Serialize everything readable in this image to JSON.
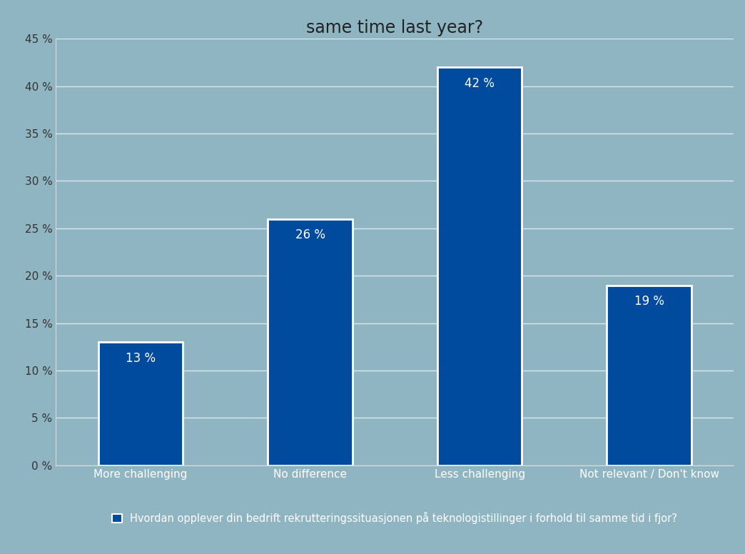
{
  "chart_data": {
    "type": "bar",
    "title": "same time last year?",
    "categories": [
      "More challenging",
      "No difference",
      "Less challenging",
      "Not relevant / Don't know"
    ],
    "series": [
      {
        "name": "Hvordan opplever din bedrift rekrutteringssituasjonen på teknologistillinger i forhold til samme tid i fjor?",
        "color": "#004b9e",
        "values": [
          13,
          26,
          42,
          19
        ],
        "value_labels": [
          "13 %",
          "26 %",
          "42 %",
          "19 %"
        ]
      }
    ],
    "ylim": [
      0,
      45
    ],
    "yticks": [
      {
        "value": 0,
        "label": "0 %"
      },
      {
        "value": 5,
        "label": "5 %"
      },
      {
        "value": 10,
        "label": "10 %"
      },
      {
        "value": 15,
        "label": "15 %"
      },
      {
        "value": 20,
        "label": "20 %"
      },
      {
        "value": 25,
        "label": "25 %"
      },
      {
        "value": 30,
        "label": "30 %"
      },
      {
        "value": 35,
        "label": "35 %"
      },
      {
        "value": 40,
        "label": "40 %"
      },
      {
        "value": 45,
        "label": "45 %"
      }
    ],
    "grid": true,
    "data_labels": true,
    "legend": "lower center"
  }
}
